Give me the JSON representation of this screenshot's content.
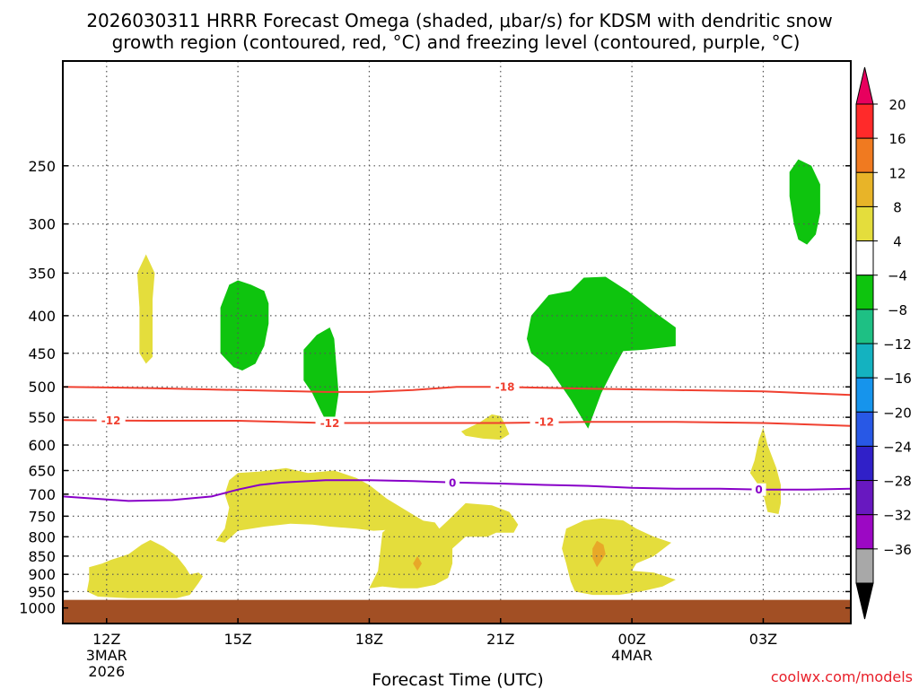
{
  "title_line1": "2026030311 HRRR Forecast Omega (shaded, μbar/s) for KDSM with dendritic snow",
  "title_line2": "growth region (contoured, red, °C) and freezing level (contoured, purple, °C)",
  "credit": "coolwx.com/models",
  "chart_data": {
    "type": "heatmap",
    "title": "2026030311 HRRR Forecast Omega (shaded, μbar/s) for KDSM with dendritic snow growth region (contoured, red, °C) and freezing level (contoured, purple, °C)",
    "xlabel": "Forecast Time (UTC)",
    "ylabel": "",
    "x_range_hours": [
      11,
      29
    ],
    "x_ticks": [
      {
        "h": 12,
        "label": "12Z",
        "sub": [
          "3MAR",
          "2026"
        ]
      },
      {
        "h": 15,
        "label": "15Z",
        "sub": []
      },
      {
        "h": 18,
        "label": "18Z",
        "sub": []
      },
      {
        "h": 21,
        "label": "21Z",
        "sub": []
      },
      {
        "h": 24,
        "label": "00Z",
        "sub": [
          "4MAR"
        ]
      },
      {
        "h": 27,
        "label": "03Z",
        "sub": []
      }
    ],
    "y_axis": "pressure (hPa), log scale, inverted",
    "y_range_hpa": [
      1050,
      180
    ],
    "y_ticks": [
      250,
      300,
      350,
      400,
      450,
      500,
      550,
      600,
      650,
      700,
      750,
      800,
      850,
      900,
      950,
      1000
    ],
    "grid": true,
    "colorbar": {
      "labels": [
        20,
        16,
        12,
        8,
        4,
        -4,
        -8,
        -12,
        -16,
        -20,
        -24,
        -28,
        -32,
        -36
      ],
      "colors": [
        "#ff2a2a",
        "#f07a20",
        "#e8b428",
        "#e4dd3c",
        "#ffffff",
        "#0ec40e",
        "#1ec084",
        "#14b2c0",
        "#1694ec",
        "#2858e6",
        "#3020c8",
        "#6818c0",
        "#9c08c4",
        "#a8a8a8"
      ],
      "top_arrow_color": "#e8005e",
      "bottom_arrow_color": "#000000"
    },
    "shaded_regions": [
      {
        "class": "green",
        "points": [
          [
            27.6,
            255
          ],
          [
            27.8,
            245
          ],
          [
            28.1,
            250
          ],
          [
            28.3,
            265
          ],
          [
            28.3,
            290
          ],
          [
            28.2,
            310
          ],
          [
            28.0,
            320
          ],
          [
            27.8,
            315
          ],
          [
            27.7,
            300
          ],
          [
            27.6,
            275
          ]
        ]
      },
      {
        "class": "green",
        "points": [
          [
            14.6,
            390
          ],
          [
            14.8,
            363
          ],
          [
            15.0,
            358
          ],
          [
            15.3,
            363
          ],
          [
            15.6,
            370
          ],
          [
            15.7,
            385
          ],
          [
            15.7,
            410
          ],
          [
            15.6,
            440
          ],
          [
            15.4,
            465
          ],
          [
            15.1,
            475
          ],
          [
            14.9,
            470
          ],
          [
            14.6,
            450
          ]
        ]
      },
      {
        "class": "green",
        "points": [
          [
            16.5,
            445
          ],
          [
            16.8,
            425
          ],
          [
            17.1,
            415
          ],
          [
            17.2,
            430
          ],
          [
            17.25,
            470
          ],
          [
            17.3,
            510
          ],
          [
            17.2,
            560
          ],
          [
            17.1,
            570
          ],
          [
            16.9,
            540
          ],
          [
            16.7,
            510
          ],
          [
            16.5,
            490
          ]
        ]
      },
      {
        "class": "green",
        "points": [
          [
            22.6,
            370
          ],
          [
            22.9,
            355
          ],
          [
            23.4,
            354
          ],
          [
            23.9,
            370
          ],
          [
            24.5,
            395
          ],
          [
            25.0,
            415
          ],
          [
            25.0,
            440
          ],
          [
            24.3,
            445
          ],
          [
            23.8,
            447
          ],
          [
            23.6,
            470
          ],
          [
            23.3,
            510
          ],
          [
            23.0,
            570
          ],
          [
            22.6,
            520
          ],
          [
            22.3,
            490
          ],
          [
            22.1,
            470
          ],
          [
            21.7,
            450
          ],
          [
            21.6,
            430
          ],
          [
            21.7,
            400
          ],
          [
            22.1,
            375
          ]
        ]
      },
      {
        "class": "yellow",
        "points": [
          [
            12.7,
            350
          ],
          [
            12.9,
            330
          ],
          [
            13.1,
            350
          ],
          [
            13.05,
            380
          ],
          [
            13.05,
            430
          ],
          [
            13.05,
            455
          ],
          [
            12.9,
            465
          ],
          [
            12.75,
            450
          ],
          [
            12.75,
            390
          ]
        ]
      },
      {
        "class": "yellow",
        "points": [
          [
            20.1,
            575
          ],
          [
            20.5,
            560
          ],
          [
            20.8,
            545
          ],
          [
            21.0,
            548
          ],
          [
            21.1,
            562
          ],
          [
            21.2,
            580
          ],
          [
            21.0,
            590
          ],
          [
            20.6,
            588
          ],
          [
            20.2,
            583
          ]
        ]
      },
      {
        "class": "yellow",
        "points": [
          [
            26.7,
            655
          ],
          [
            26.8,
            630
          ],
          [
            26.9,
            590
          ],
          [
            27.0,
            568
          ],
          [
            27.1,
            600
          ],
          [
            27.3,
            645
          ],
          [
            27.4,
            680
          ],
          [
            27.4,
            720
          ],
          [
            27.35,
            745
          ],
          [
            27.1,
            740
          ],
          [
            27.0,
            700
          ],
          [
            26.85,
            675
          ]
        ]
      },
      {
        "class": "yellow",
        "points": [
          [
            14.8,
            670
          ],
          [
            15.0,
            655
          ],
          [
            15.5,
            652
          ],
          [
            16.1,
            645
          ],
          [
            16.6,
            655
          ],
          [
            17.2,
            650
          ],
          [
            17.7,
            665
          ],
          [
            18.0,
            680
          ],
          [
            18.4,
            710
          ],
          [
            18.9,
            740
          ],
          [
            19.3,
            765
          ],
          [
            18.9,
            780
          ],
          [
            18.1,
            785
          ],
          [
            17.7,
            780
          ],
          [
            17.1,
            775
          ],
          [
            16.7,
            770
          ],
          [
            16.2,
            768
          ],
          [
            15.6,
            775
          ],
          [
            15.0,
            785
          ],
          [
            14.7,
            815
          ],
          [
            14.5,
            810
          ],
          [
            14.7,
            780
          ],
          [
            14.8,
            730
          ],
          [
            14.7,
            700
          ]
        ]
      },
      {
        "class": "yellow",
        "points": [
          [
            18.3,
            790
          ],
          [
            18.6,
            760
          ],
          [
            19.2,
            760
          ],
          [
            19.5,
            765
          ],
          [
            19.6,
            780
          ],
          [
            19.8,
            760
          ],
          [
            20.2,
            720
          ],
          [
            20.8,
            725
          ],
          [
            21.2,
            740
          ],
          [
            21.4,
            770
          ],
          [
            21.3,
            790
          ],
          [
            20.9,
            790
          ],
          [
            20.7,
            800
          ],
          [
            20.2,
            800
          ],
          [
            19.9,
            830
          ],
          [
            19.9,
            870
          ],
          [
            19.8,
            910
          ],
          [
            19.5,
            930
          ],
          [
            19.1,
            940
          ],
          [
            18.7,
            940
          ],
          [
            18.3,
            935
          ],
          [
            18.0,
            940
          ],
          [
            18.2,
            890
          ],
          [
            18.25,
            840
          ]
        ]
      },
      {
        "class": "yellow",
        "points": [
          [
            22.5,
            780
          ],
          [
            22.9,
            760
          ],
          [
            23.3,
            755
          ],
          [
            23.8,
            760
          ],
          [
            24.1,
            780
          ],
          [
            24.5,
            800
          ],
          [
            24.9,
            815
          ],
          [
            24.5,
            850
          ],
          [
            24.1,
            870
          ],
          [
            24.0,
            890
          ],
          [
            24.5,
            895
          ],
          [
            25.0,
            915
          ],
          [
            24.7,
            935
          ],
          [
            24.2,
            950
          ],
          [
            23.7,
            960
          ],
          [
            23.1,
            960
          ],
          [
            22.7,
            950
          ],
          [
            22.6,
            920
          ],
          [
            22.5,
            870
          ],
          [
            22.4,
            830
          ]
        ]
      },
      {
        "class": "yellow",
        "points": [
          [
            11.6,
            880
          ],
          [
            11.9,
            870
          ],
          [
            12.1,
            860
          ],
          [
            12.5,
            845
          ],
          [
            12.8,
            820
          ],
          [
            13.0,
            808
          ],
          [
            13.3,
            825
          ],
          [
            13.6,
            850
          ],
          [
            13.8,
            880
          ],
          [
            13.9,
            900
          ],
          [
            14.1,
            895
          ],
          [
            14.2,
            905
          ],
          [
            14.1,
            925
          ],
          [
            13.9,
            960
          ],
          [
            13.6,
            970
          ],
          [
            13.1,
            970
          ],
          [
            12.5,
            970
          ],
          [
            11.8,
            965
          ],
          [
            11.55,
            950
          ],
          [
            11.6,
            915
          ]
        ]
      },
      {
        "class": "orange",
        "points": [
          [
            19.0,
            870
          ],
          [
            19.1,
            850
          ],
          [
            19.2,
            870
          ],
          [
            19.1,
            890
          ]
        ]
      },
      {
        "class": "orange",
        "points": [
          [
            23.1,
            830
          ],
          [
            23.2,
            810
          ],
          [
            23.35,
            820
          ],
          [
            23.4,
            845
          ],
          [
            23.2,
            880
          ],
          [
            23.1,
            855
          ]
        ]
      }
    ],
    "contours": [
      {
        "name": "-18",
        "color": "#f04030",
        "points": [
          [
            11,
            500
          ],
          [
            13,
            502
          ],
          [
            15,
            505
          ],
          [
            17,
            508
          ],
          [
            18,
            508
          ],
          [
            19,
            505
          ],
          [
            20,
            500
          ],
          [
            21,
            500
          ],
          [
            23,
            503
          ],
          [
            25,
            505
          ],
          [
            27,
            507
          ],
          [
            29,
            513
          ]
        ],
        "label_at": [
          21.1,
          500
        ]
      },
      {
        "name": "-12",
        "color": "#f04030",
        "points": [
          [
            11,
            555
          ],
          [
            13,
            556
          ],
          [
            15,
            556
          ],
          [
            17,
            560
          ],
          [
            19,
            560
          ],
          [
            21,
            560
          ],
          [
            23,
            558
          ],
          [
            25,
            558
          ],
          [
            27,
            560
          ],
          [
            29,
            565
          ]
        ],
        "label_points": [
          [
            12.1,
            555
          ],
          [
            17.1,
            560
          ],
          [
            22.0,
            558
          ]
        ]
      },
      {
        "name": "0",
        "color": "#8800c8",
        "points": [
          [
            11,
            705
          ],
          [
            12.5,
            715
          ],
          [
            13.5,
            713
          ],
          [
            14.4,
            705
          ],
          [
            15.0,
            690
          ],
          [
            15.5,
            680
          ],
          [
            16.0,
            675
          ],
          [
            17,
            670
          ],
          [
            18,
            670
          ],
          [
            19,
            672
          ],
          [
            20,
            675
          ],
          [
            21,
            677
          ],
          [
            22,
            680
          ],
          [
            23,
            682
          ],
          [
            24,
            686
          ],
          [
            25,
            688
          ],
          [
            26,
            688
          ],
          [
            27,
            690
          ],
          [
            28,
            690
          ],
          [
            29,
            688
          ]
        ],
        "label_points": [
          [
            19.9,
            675
          ],
          [
            26.9,
            690
          ]
        ]
      }
    ],
    "ground_level_hpa": 975
  }
}
